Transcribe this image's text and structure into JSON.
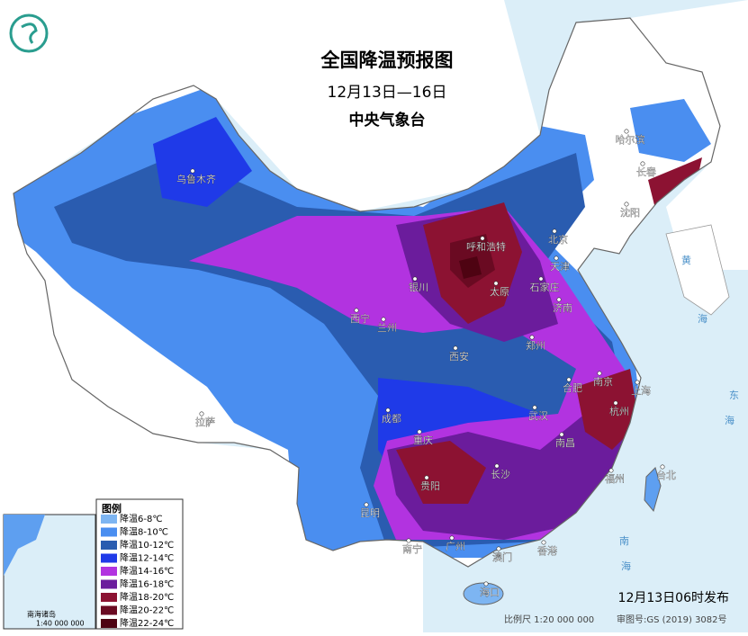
{
  "header": {
    "title": "全国降温预报图",
    "period": "12月13日—16日",
    "issuer": "中央气象台"
  },
  "legend": {
    "title": "图例",
    "items": [
      {
        "label": "降温6-8℃",
        "color": "#7db5f2"
      },
      {
        "label": "降温8-10℃",
        "color": "#4a8ef0"
      },
      {
        "label": "降温10-12℃",
        "color": "#2a5cb0"
      },
      {
        "label": "降温12-14℃",
        "color": "#1f3ae8"
      },
      {
        "label": "降温14-16℃",
        "color": "#b233e0"
      },
      {
        "label": "降温16-18℃",
        "color": "#6b1c9c"
      },
      {
        "label": "降温18-20℃",
        "color": "#8c1232"
      },
      {
        "label": "降温20-22℃",
        "color": "#6a0a22"
      },
      {
        "label": "降温22-24℃",
        "color": "#4e0312"
      }
    ]
  },
  "cities": [
    "乌鲁木齐",
    "拉萨",
    "哈尔滨",
    "长春",
    "沈阳",
    "北京",
    "天津",
    "呼和浩特",
    "银川",
    "太原",
    "石家庄",
    "济南",
    "兰州",
    "西宁",
    "西安",
    "郑州",
    "合肥",
    "南京",
    "上海",
    "杭州",
    "武汉",
    "南昌",
    "成都",
    "重庆",
    "长沙",
    "贵阳",
    "昆明",
    "福州",
    "台北",
    "广州",
    "南宁",
    "香港",
    "澳门",
    "海口"
  ],
  "seas": [
    "黄",
    "海",
    "东",
    "海",
    "南",
    "海"
  ],
  "inset": {
    "title": "南海诸岛",
    "scale": "1:40 000 000"
  },
  "footer": {
    "release": "12月13日06时发布",
    "scale": "比例尺 1:20 000 000",
    "review": "审图号:GS (2019) 3082号"
  }
}
